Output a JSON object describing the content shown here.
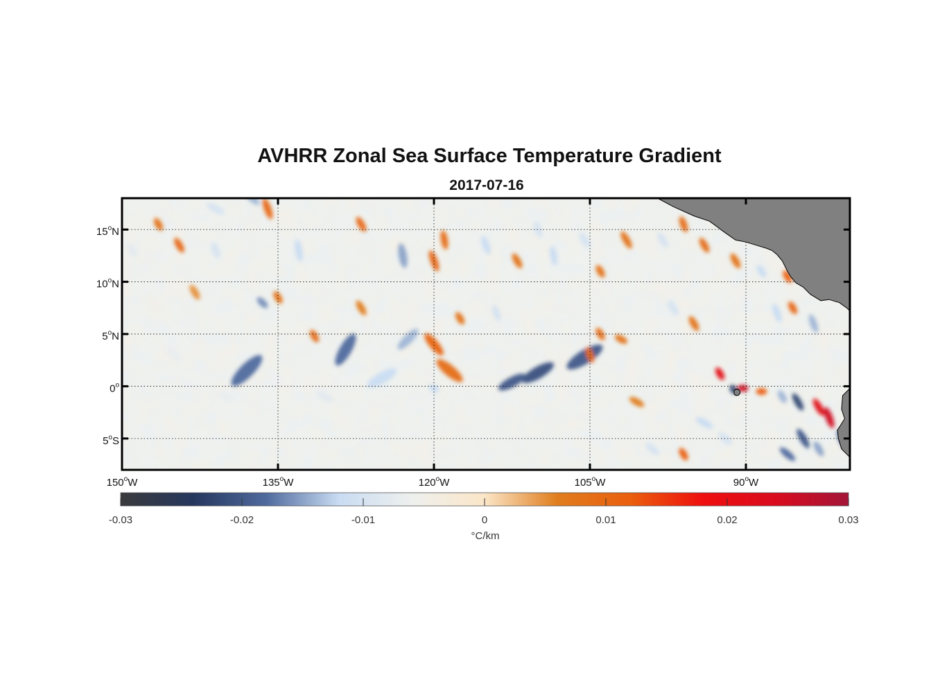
{
  "title": "AVHRR Zonal Sea Surface Temperature Gradient",
  "subtitle": "2017-07-16",
  "map": {
    "lon_range": [
      -150,
      -80
    ],
    "lat_range": [
      -8,
      18
    ],
    "lon_ticks": [
      {
        "value": -150,
        "deg": "150",
        "sup": "o",
        "hem": "W"
      },
      {
        "value": -135,
        "deg": "135",
        "sup": "o",
        "hem": "W"
      },
      {
        "value": -120,
        "deg": "120",
        "sup": "o",
        "hem": "W"
      },
      {
        "value": -105,
        "deg": "105",
        "sup": "o",
        "hem": "W"
      },
      {
        "value": -90,
        "deg": "90",
        "sup": "o",
        "hem": "W"
      }
    ],
    "lat_ticks": [
      {
        "value": 15,
        "deg": "15",
        "sup": "o",
        "hem": "N"
      },
      {
        "value": 10,
        "deg": "10",
        "sup": "o",
        "hem": "N"
      },
      {
        "value": 5,
        "deg": "5",
        "sup": "o",
        "hem": "N"
      },
      {
        "value": 0,
        "deg": "0",
        "sup": "o",
        "hem": ""
      },
      {
        "value": -5,
        "deg": "5",
        "sup": "o",
        "hem": "S"
      }
    ],
    "grid": "dotted",
    "land_color": "#808080",
    "features": [
      {
        "lon": -105.5,
        "lat": 2.8,
        "value": -0.02,
        "len": 30,
        "ang": -32
      },
      {
        "lon": -110,
        "lat": 1.3,
        "value": -0.021,
        "len": 26,
        "ang": -30
      },
      {
        "lon": -112.5,
        "lat": 0.4,
        "value": -0.02,
        "len": 22,
        "ang": -28
      },
      {
        "lon": -138,
        "lat": 1.5,
        "value": -0.018,
        "len": 30,
        "ang": -45
      },
      {
        "lon": -128.5,
        "lat": 3.5,
        "value": -0.018,
        "len": 26,
        "ang": -60
      },
      {
        "lon": -125,
        "lat": 0.8,
        "value": -0.012,
        "len": 24,
        "ang": -30
      },
      {
        "lon": -122.5,
        "lat": 4.5,
        "value": -0.014,
        "len": 20,
        "ang": -45
      },
      {
        "lon": -120,
        "lat": 4,
        "value": 0.011,
        "len": 20,
        "ang": 50
      },
      {
        "lon": -118.5,
        "lat": 1.5,
        "value": 0.009,
        "len": 24,
        "ang": 40
      },
      {
        "lon": -120,
        "lat": 12,
        "value": 0.01,
        "len": 16,
        "ang": 70
      },
      {
        "lon": -119,
        "lat": 14,
        "value": 0.009,
        "len": 14,
        "ang": 80
      },
      {
        "lon": -123,
        "lat": 12.5,
        "value": -0.015,
        "len": 18,
        "ang": 80
      },
      {
        "lon": -136,
        "lat": 17,
        "value": 0.01,
        "len": 16,
        "ang": 70
      },
      {
        "lon": -133,
        "lat": 13,
        "value": -0.012,
        "len": 16,
        "ang": 80
      },
      {
        "lon": -127,
        "lat": 15.5,
        "value": 0.01,
        "len": 12,
        "ang": 60
      },
      {
        "lon": -137.5,
        "lat": 18,
        "value": -0.014,
        "len": 14,
        "ang": 40
      },
      {
        "lon": -141,
        "lat": 17,
        "value": -0.01,
        "len": 14,
        "ang": 30
      },
      {
        "lon": -144.5,
        "lat": 13.5,
        "value": 0.01,
        "len": 12,
        "ang": 60
      },
      {
        "lon": -136.5,
        "lat": 8,
        "value": -0.016,
        "len": 10,
        "ang": 45
      },
      {
        "lon": -135,
        "lat": 8.5,
        "value": 0.008,
        "len": 10,
        "ang": 60
      },
      {
        "lon": -131.5,
        "lat": 4.8,
        "value": 0.009,
        "len": 10,
        "ang": 60
      },
      {
        "lon": -115,
        "lat": 13.5,
        "value": -0.012,
        "len": 14,
        "ang": 70
      },
      {
        "lon": -112,
        "lat": 12,
        "value": 0.008,
        "len": 12,
        "ang": 60
      },
      {
        "lon": -110,
        "lat": 15,
        "value": -0.01,
        "len": 12,
        "ang": 70
      },
      {
        "lon": -108.5,
        "lat": 12.5,
        "value": -0.012,
        "len": 14,
        "ang": 80
      },
      {
        "lon": -105.5,
        "lat": 14,
        "value": -0.01,
        "len": 12,
        "ang": 60
      },
      {
        "lon": -104,
        "lat": 11,
        "value": 0.008,
        "len": 10,
        "ang": 60
      },
      {
        "lon": -101.5,
        "lat": 14,
        "value": 0.008,
        "len": 14,
        "ang": 60
      },
      {
        "lon": -98,
        "lat": 14,
        "value": -0.01,
        "len": 12,
        "ang": 60
      },
      {
        "lon": -96,
        "lat": 15.5,
        "value": 0.009,
        "len": 12,
        "ang": 70
      },
      {
        "lon": -94,
        "lat": 13.5,
        "value": 0.009,
        "len": 12,
        "ang": 60
      },
      {
        "lon": -91,
        "lat": 12,
        "value": 0.008,
        "len": 12,
        "ang": 60
      },
      {
        "lon": -88.5,
        "lat": 11,
        "value": -0.012,
        "len": 10,
        "ang": 60
      },
      {
        "lon": -86,
        "lat": 10.5,
        "value": 0.012,
        "len": 10,
        "ang": 60
      },
      {
        "lon": -87,
        "lat": 7,
        "value": -0.012,
        "len": 14,
        "ang": 70
      },
      {
        "lon": -85.5,
        "lat": 7.5,
        "value": 0.01,
        "len": 10,
        "ang": 60
      },
      {
        "lon": -83.5,
        "lat": 6,
        "value": -0.014,
        "len": 14,
        "ang": 70
      },
      {
        "lon": -97,
        "lat": 7.5,
        "value": -0.01,
        "len": 12,
        "ang": 60
      },
      {
        "lon": -95,
        "lat": 6,
        "value": 0.008,
        "len": 12,
        "ang": 60
      },
      {
        "lon": -104,
        "lat": 5,
        "value": 0.009,
        "len": 10,
        "ang": 60
      },
      {
        "lon": -102,
        "lat": 4.5,
        "value": 0.008,
        "len": 10,
        "ang": 30
      },
      {
        "lon": -105,
        "lat": 3,
        "value": 0.01,
        "len": 12,
        "ang": 70
      },
      {
        "lon": -92.5,
        "lat": 1.2,
        "value": 0.022,
        "len": 10,
        "ang": 60
      },
      {
        "lon": -90.3,
        "lat": -0.2,
        "value": 0.025,
        "len": 8,
        "ang": 0
      },
      {
        "lon": -91.2,
        "lat": -0.3,
        "value": -0.022,
        "len": 7,
        "ang": 60
      },
      {
        "lon": -88.5,
        "lat": -0.5,
        "value": 0.012,
        "len": 8,
        "ang": 0
      },
      {
        "lon": -86.5,
        "lat": -1,
        "value": -0.014,
        "len": 10,
        "ang": 60
      },
      {
        "lon": -85,
        "lat": -1.5,
        "value": -0.022,
        "len": 14,
        "ang": 60
      },
      {
        "lon": -83,
        "lat": -2,
        "value": 0.022,
        "len": 14,
        "ang": 60
      },
      {
        "lon": -82,
        "lat": -3,
        "value": 0.025,
        "len": 16,
        "ang": 70
      },
      {
        "lon": -80.8,
        "lat": -5,
        "value": -0.018,
        "len": 14,
        "ang": 70
      },
      {
        "lon": -84.5,
        "lat": -5,
        "value": -0.02,
        "len": 16,
        "ang": 60
      },
      {
        "lon": -86,
        "lat": -6.5,
        "value": -0.018,
        "len": 14,
        "ang": 40
      },
      {
        "lon": -83,
        "lat": -6,
        "value": -0.015,
        "len": 12,
        "ang": 60
      },
      {
        "lon": -94,
        "lat": -3.5,
        "value": -0.012,
        "len": 14,
        "ang": 30
      },
      {
        "lon": -96,
        "lat": -6.5,
        "value": 0.012,
        "len": 10,
        "ang": 60
      },
      {
        "lon": -99,
        "lat": -6,
        "value": -0.01,
        "len": 12,
        "ang": 40
      },
      {
        "lon": -92,
        "lat": -5,
        "value": -0.01,
        "len": 12,
        "ang": 40
      },
      {
        "lon": -100.5,
        "lat": -1.5,
        "value": 0.006,
        "len": 12,
        "ang": 30
      },
      {
        "lon": -108,
        "lat": -3,
        "value": -0.006,
        "len": 14,
        "ang": 20
      },
      {
        "lon": -130.5,
        "lat": -1,
        "value": -0.008,
        "len": 14,
        "ang": 30
      },
      {
        "lon": -140,
        "lat": -1,
        "value": -0.007,
        "len": 12,
        "ang": 30
      },
      {
        "lon": -120,
        "lat": -0.2,
        "value": -0.012,
        "len": 8,
        "ang": 30
      },
      {
        "lon": -117.5,
        "lat": 6.5,
        "value": 0.008,
        "len": 10,
        "ang": 60
      },
      {
        "lon": -114,
        "lat": 7,
        "value": -0.01,
        "len": 12,
        "ang": 70
      },
      {
        "lon": -127,
        "lat": 7.5,
        "value": 0.006,
        "len": 12,
        "ang": 60
      },
      {
        "lon": -145,
        "lat": 3,
        "value": -0.007,
        "len": 14,
        "ang": 40
      },
      {
        "lon": -143,
        "lat": 9,
        "value": 0.005,
        "len": 12,
        "ang": 60
      },
      {
        "lon": -147,
        "lat": 8,
        "value": -0.005,
        "len": 14,
        "ang": 50
      },
      {
        "lon": -141,
        "lat": 13,
        "value": -0.01,
        "len": 12,
        "ang": 70
      },
      {
        "lon": -146.5,
        "lat": 15.5,
        "value": 0.008,
        "len": 10,
        "ang": 60
      },
      {
        "lon": -149,
        "lat": 13,
        "value": -0.008,
        "len": 10,
        "ang": 60
      }
    ],
    "land": [
      {
        "name": "central-america",
        "lonlat": [
          [
            -98.5,
            18
          ],
          [
            -97,
            17.2
          ],
          [
            -95,
            16.3
          ],
          [
            -93.5,
            15.8
          ],
          [
            -92,
            14.7
          ],
          [
            -91,
            14
          ],
          [
            -90,
            13.8
          ],
          [
            -89,
            13.5
          ],
          [
            -88,
            13.2
          ],
          [
            -87.5,
            13
          ],
          [
            -87,
            12.6
          ],
          [
            -86.5,
            12
          ],
          [
            -86,
            11
          ],
          [
            -85.7,
            10.5
          ],
          [
            -85.2,
            9.9
          ],
          [
            -84.5,
            9.5
          ],
          [
            -83.8,
            8.8
          ],
          [
            -82.8,
            8.2
          ],
          [
            -82,
            8.3
          ],
          [
            -81,
            8
          ],
          [
            -80.3,
            7.5
          ],
          [
            -80,
            7.2
          ],
          [
            -80,
            18
          ]
        ]
      },
      {
        "name": "south-america",
        "lonlat": [
          [
            -80,
            -0.2
          ],
          [
            -80.7,
            -0.9
          ],
          [
            -80.8,
            -2.2
          ],
          [
            -80.5,
            -3.1
          ],
          [
            -81.2,
            -4.2
          ],
          [
            -81.1,
            -5
          ],
          [
            -80.8,
            -6
          ],
          [
            -80,
            -6.8
          ],
          [
            -80,
            -8
          ],
          [
            -80,
            -0.2
          ]
        ]
      }
    ],
    "islands": [
      {
        "name": "galapagos",
        "lon": -90.8,
        "lat": -0.6
      }
    ]
  },
  "colorbar": {
    "min": -0.03,
    "max": 0.03,
    "ticks": [
      "-0.03",
      "-0.02",
      "-0.01",
      "0",
      "0.01",
      "0.02",
      "0.03"
    ],
    "label": "°C/km",
    "colors": [
      "#3a3a3c",
      "#26375e",
      "#4f6a9e",
      "#c9dcf2",
      "#eef0ee",
      "#fbe6c8",
      "#e07d1e",
      "#ea5f0d",
      "#ef0f0f",
      "#d90c1e",
      "#a31538"
    ]
  }
}
